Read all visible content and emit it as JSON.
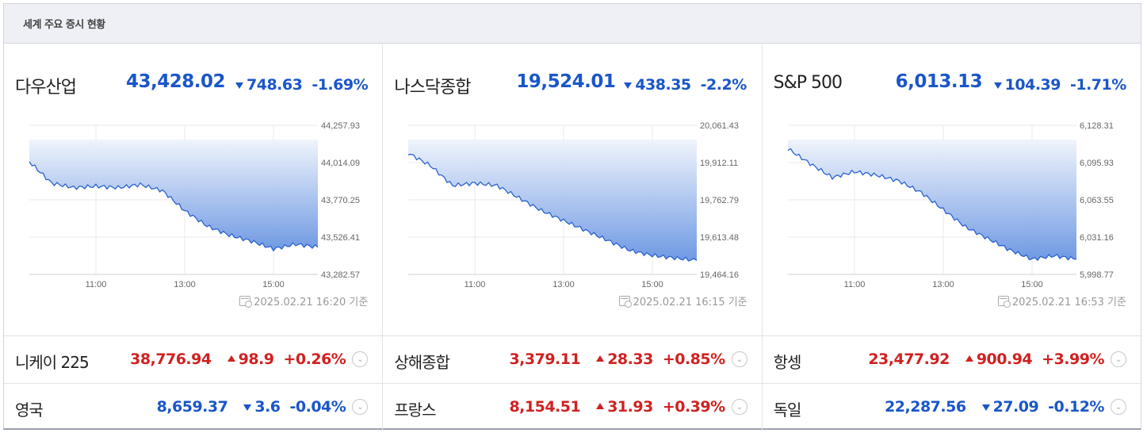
{
  "header": {
    "title": "세계 주요 증시 현황"
  },
  "main_indices": [
    {
      "name": "다우산업",
      "value": "43,428.02",
      "change": "748.63",
      "percent": "-1.69%",
      "stamp": "2025.02.21 16:20 기준",
      "y_ticks": [
        "44,257.93",
        "44,014.09",
        "43,770.25",
        "43,526.41",
        "43,282.57"
      ],
      "x_ticks": [
        "11:00",
        "13:00",
        "15:00"
      ],
      "color_up": "#d02121",
      "color_down": "#1a56c8"
    },
    {
      "name": "나스닥종합",
      "value": "19,524.01",
      "change": "438.35",
      "percent": "-2.2%",
      "stamp": "2025.02.21 16:15 기준",
      "y_ticks": [
        "20,061.43",
        "19,912.11",
        "19,762.79",
        "19,613.48",
        "19,464.16"
      ],
      "x_ticks": [
        "11:00",
        "13:00",
        "15:00"
      ]
    },
    {
      "name": "S&P 500",
      "value": "6,013.13",
      "change": "104.39",
      "percent": "-1.71%",
      "stamp": "2025.02.21 16:53 기준",
      "y_ticks": [
        "6,128.31",
        "6,095.93",
        "6,063.55",
        "6,031.16",
        "5,998.77"
      ],
      "x_ticks": [
        "11:00",
        "13:00",
        "15:00"
      ]
    }
  ],
  "chart_data": [
    {
      "type": "area",
      "title": "다우산업",
      "x": [
        "09:30",
        "10:00",
        "10:30",
        "11:00",
        "11:30",
        "12:00",
        "12:30",
        "13:00",
        "13:30",
        "14:00",
        "14:30",
        "15:00",
        "15:30",
        "16:00"
      ],
      "values": [
        44020,
        43880,
        43850,
        43860,
        43850,
        43870,
        43830,
        43700,
        43600,
        43540,
        43500,
        43450,
        43480,
        43460
      ],
      "ylim": [
        43282.57,
        44257.93
      ]
    },
    {
      "type": "area",
      "title": "나스닥종합",
      "x": [
        "09:30",
        "10:00",
        "10:30",
        "11:00",
        "11:30",
        "12:00",
        "12:30",
        "13:00",
        "13:30",
        "14:00",
        "14:30",
        "15:00",
        "15:30",
        "16:00"
      ],
      "values": [
        19950,
        19900,
        19820,
        19830,
        19820,
        19770,
        19720,
        19680,
        19640,
        19600,
        19560,
        19540,
        19530,
        19520
      ],
      "ylim": [
        19464.16,
        20061.43
      ]
    },
    {
      "type": "area",
      "title": "S&P 500",
      "x": [
        "09:30",
        "10:00",
        "10:30",
        "11:00",
        "11:30",
        "12:00",
        "12:30",
        "13:00",
        "13:30",
        "14:00",
        "14:30",
        "15:00",
        "15:30",
        "16:00"
      ],
      "values": [
        6108,
        6095,
        6083,
        6088,
        6085,
        6080,
        6070,
        6055,
        6040,
        6030,
        6020,
        6012,
        6015,
        6012
      ],
      "ylim": [
        5998.77,
        6128.31
      ]
    }
  ],
  "other_indices": [
    [
      {
        "name": "니케이 225",
        "value": "38,776.94",
        "change": "98.9",
        "percent": "+0.26%",
        "dir": "up"
      },
      {
        "name": "상해종합",
        "value": "3,379.11",
        "change": "28.33",
        "percent": "+0.85%",
        "dir": "up"
      },
      {
        "name": "항셍",
        "value": "23,477.92",
        "change": "900.94",
        "percent": "+3.99%",
        "dir": "up"
      }
    ],
    [
      {
        "name": "영국",
        "value": "8,659.37",
        "change": "3.6",
        "percent": "-0.04%",
        "dir": "down"
      },
      {
        "name": "프랑스",
        "value": "8,154.51",
        "change": "31.93",
        "percent": "+0.39%",
        "dir": "up"
      },
      {
        "name": "독일",
        "value": "22,287.56",
        "change": "27.09",
        "percent": "-0.12%",
        "dir": "down"
      }
    ]
  ]
}
